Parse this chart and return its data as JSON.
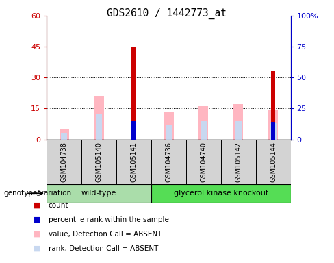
{
  "title": "GDS2610 / 1442773_at",
  "samples": [
    "GSM104738",
    "GSM105140",
    "GSM105141",
    "GSM104736",
    "GSM104740",
    "GSM105142",
    "GSM105144"
  ],
  "groups": {
    "wild-type": [
      0,
      1,
      2
    ],
    "glycerol kinase knockout": [
      3,
      4,
      5,
      6
    ]
  },
  "count_values": [
    0,
    0,
    45,
    0,
    0,
    0,
    33
  ],
  "percentile_rank_values": [
    0,
    0,
    15,
    0,
    0,
    0,
    14
  ],
  "value_absent": [
    5,
    21,
    0,
    13,
    16,
    17,
    14
  ],
  "rank_absent": [
    3,
    12,
    0,
    7,
    9,
    9,
    8
  ],
  "left_ylim": [
    0,
    60
  ],
  "right_ylim": [
    0,
    100
  ],
  "left_yticks": [
    0,
    15,
    30,
    45,
    60
  ],
  "right_yticks": [
    0,
    25,
    50,
    75,
    100
  ],
  "right_yticklabels": [
    "0",
    "25",
    "50",
    "75",
    "100%"
  ],
  "left_tick_color": "#cc0000",
  "right_tick_color": "#0000cc",
  "legend_items": [
    {
      "label": "count",
      "color": "#cc0000"
    },
    {
      "label": "percentile rank within the sample",
      "color": "#0000cc"
    },
    {
      "label": "value, Detection Call = ABSENT",
      "color": "#ffb6c1"
    },
    {
      "label": "rank, Detection Call = ABSENT",
      "color": "#c8d8f0"
    }
  ],
  "genotype_label": "genotype/variation",
  "wt_color": "#aaddaa",
  "gk_color": "#55dd55"
}
